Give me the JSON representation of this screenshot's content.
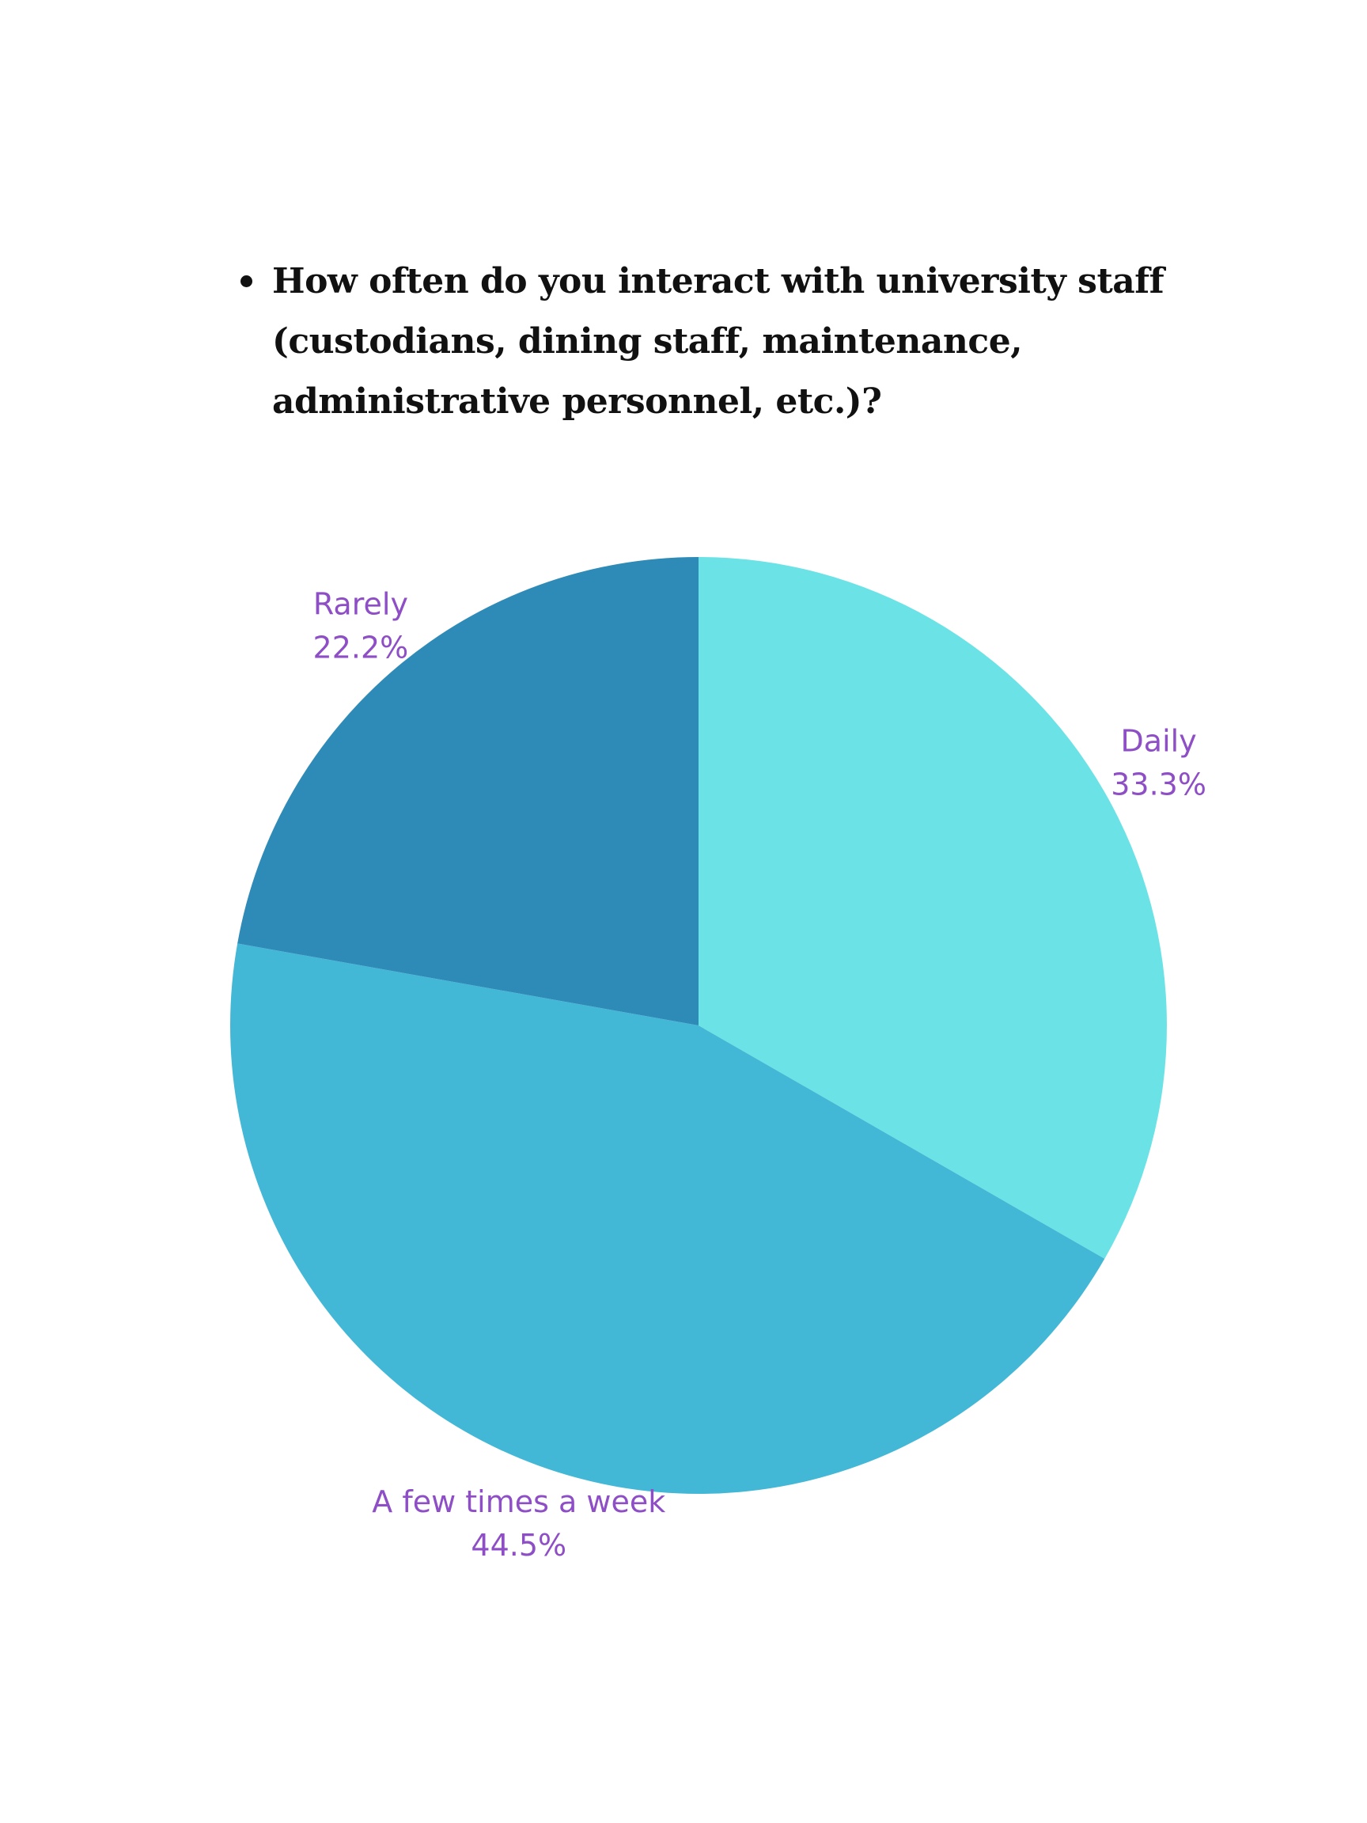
{
  "question": "How often do you interact with university staff (custodians, dining staff, maintenance, administrative personnel, etc.)?",
  "chart_data": {
    "type": "pie",
    "title": "",
    "start": "12 o'clock, clockwise",
    "slices": [
      {
        "label": "Daily",
        "value": 33.3,
        "display": "33.3%",
        "color": "#6be3e6"
      },
      {
        "label": "A few times a week",
        "value": 44.5,
        "display": "44.5%",
        "color": "#43b7d6"
      },
      {
        "label": "Rarely",
        "value": 22.2,
        "display": "22.2%",
        "color": "#2e8ab6"
      }
    ],
    "label_color": "#8e4ec6"
  }
}
